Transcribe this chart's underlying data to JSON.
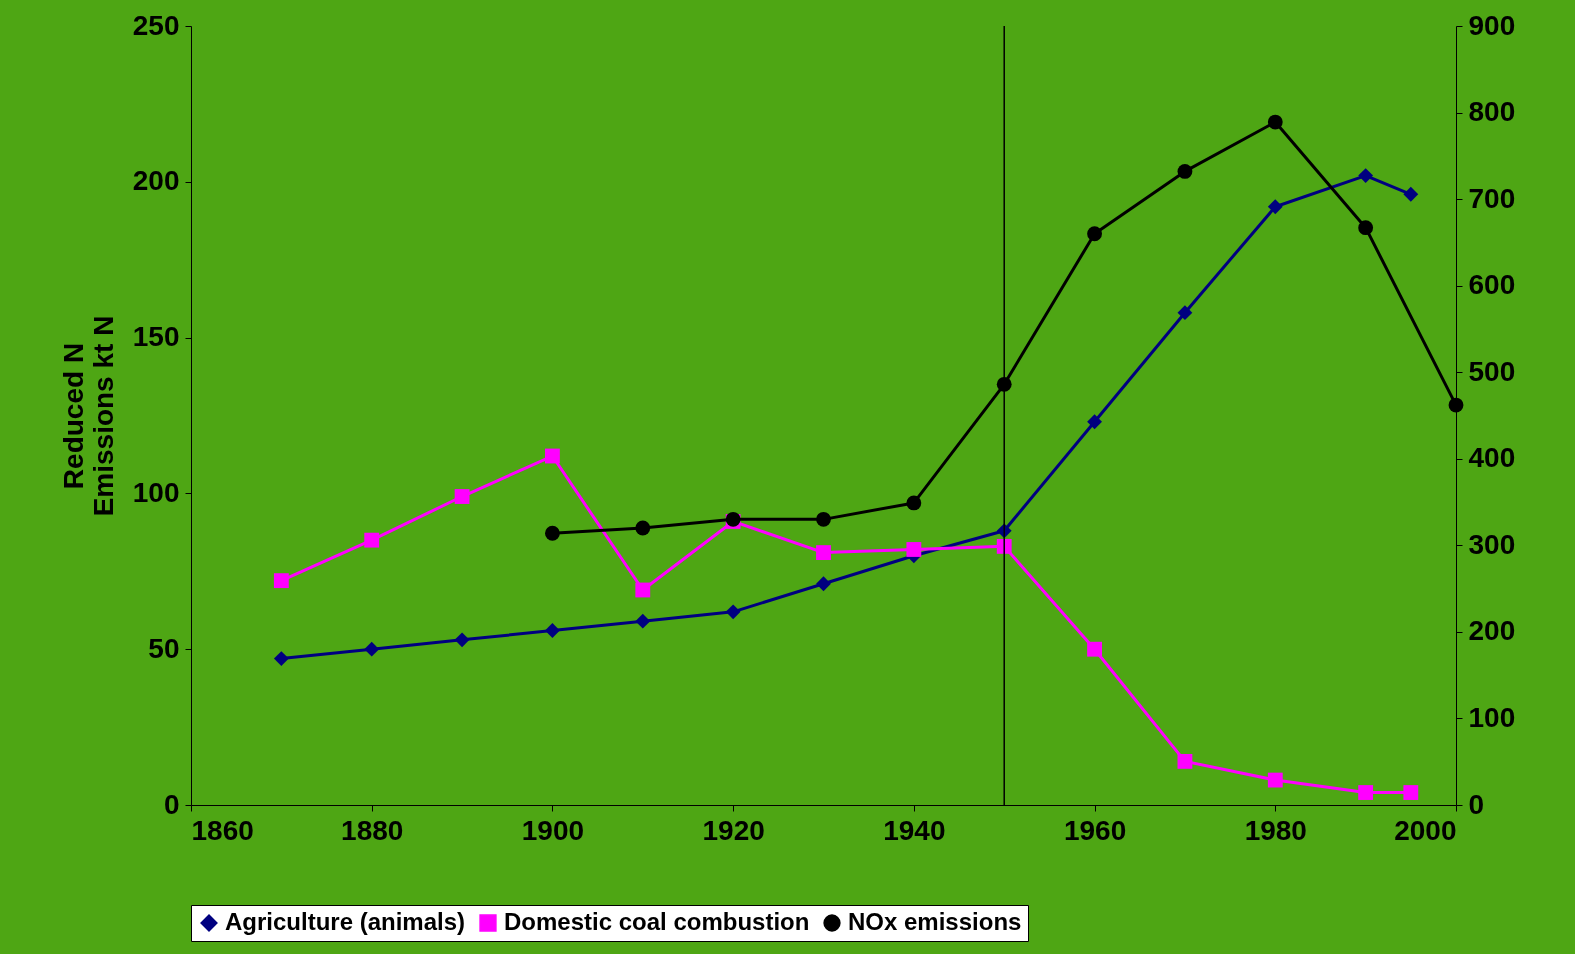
{
  "chart_data": {
    "type": "line",
    "ylabel": "Reduced N\nEmissions kt N",
    "x": [
      1870,
      1880,
      1890,
      1900,
      1910,
      1920,
      1930,
      1940,
      1950,
      1960,
      1970,
      1980,
      1990,
      1995
    ],
    "series": [
      {
        "name": "Agriculture (animals)",
        "color": "#000080",
        "marker": "diamond",
        "values": [
          47,
          50,
          53,
          56,
          59,
          62,
          71,
          80,
          88,
          123,
          158,
          192,
          202,
          196
        ]
      },
      {
        "name": "Domestic coal combustion",
        "color": "#ff00ff",
        "marker": "square",
        "values": [
          72,
          85,
          99,
          112,
          69,
          91,
          81,
          82,
          83,
          50,
          14,
          8,
          4,
          4
        ]
      },
      {
        "name": "NOx emissions",
        "color": "#000000",
        "marker": "circle",
        "axis": "y2",
        "x": [
          1900,
          1910,
          1920,
          1930,
          1940,
          1950,
          1960,
          1970,
          1980,
          1990,
          2000
        ],
        "values": [
          314,
          320,
          330,
          330,
          349,
          486,
          660,
          732,
          789,
          667,
          462
        ]
      }
    ],
    "xlim": [
      1860,
      2000
    ],
    "xticks": [
      1860,
      1880,
      1900,
      1920,
      1940,
      1960,
      1980,
      2000
    ],
    "ylim": [
      0,
      250
    ],
    "yticks": [
      0,
      50,
      100,
      150,
      200,
      250
    ],
    "y2lim": [
      0,
      900
    ],
    "y2ticks": [
      0,
      100,
      200,
      300,
      400,
      500,
      600,
      700,
      800,
      900
    ],
    "ref_lines": [
      {
        "axis": "x",
        "value": 1950,
        "color": "#000000"
      }
    ],
    "grid": false,
    "legend": "bottom"
  }
}
